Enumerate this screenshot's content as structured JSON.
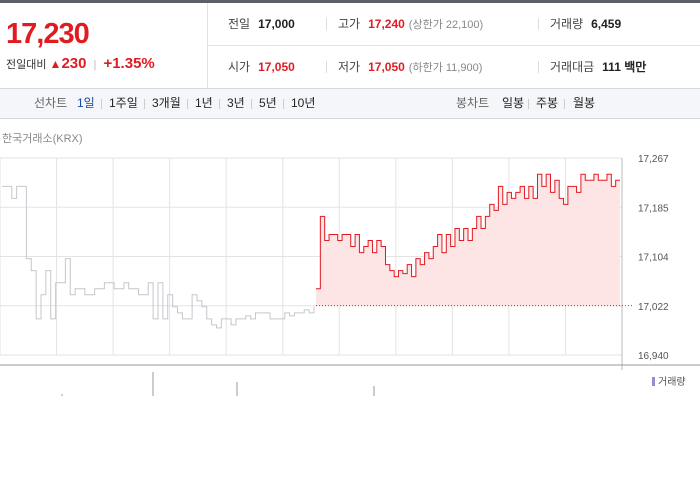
{
  "quote": {
    "price": "17,230",
    "change_label": "전일대비",
    "change_value": "230",
    "change_pct": "+1.35%"
  },
  "info": {
    "prev_close": {
      "label": "전일",
      "value": "17,000"
    },
    "high": {
      "label": "고가",
      "value": "17,240",
      "sub": "(상한가 22,100)"
    },
    "volume": {
      "label": "거래량",
      "value": "6,459"
    },
    "open": {
      "label": "시가",
      "value": "17,050"
    },
    "low": {
      "label": "저가",
      "value": "17,050",
      "sub": "(하한가 11,900)"
    },
    "turnover": {
      "label": "거래대금",
      "value": "111 백만"
    }
  },
  "line_tabs": {
    "label": "선차트",
    "items": [
      "1일",
      "1주일",
      "3개월",
      "1년",
      "3년",
      "5년",
      "10년"
    ],
    "active": "1일"
  },
  "candle_tabs": {
    "label": "봉차트",
    "items": [
      "일봉",
      "주봉",
      "월봉"
    ]
  },
  "exchange": "한국거래소(KRX)",
  "volume_legend": "거래량",
  "colors": {
    "up": "#e01b22",
    "fill": "#fde4e5",
    "grid": "#e3e3e3",
    "prev": "#c4c7cc"
  },
  "chart_data": {
    "type": "line",
    "y_ticks": [
      "17,267",
      "17,185",
      "17,104",
      "17,022",
      "16,940"
    ],
    "ylim": [
      16940,
      17267
    ],
    "baseline": 17022,
    "previous_day": [
      17220,
      17220,
      17200,
      17220,
      17220,
      17100,
      17080,
      17000,
      17040,
      17080,
      17000,
      17060,
      17060,
      17100,
      17040,
      17050,
      17050,
      17040,
      17040,
      17050,
      17050,
      17060,
      17060,
      17050,
      17050,
      17060,
      17050,
      17050,
      17040,
      17040,
      17060,
      17000,
      17060,
      17000,
      17040,
      17020,
      17010,
      17000,
      17000,
      17040,
      17030,
      17020,
      17000,
      16990,
      16985,
      17000,
      17000,
      16990,
      17000,
      17000,
      17005,
      17000,
      17010,
      17010,
      17010,
      17000,
      17000,
      17000,
      17010,
      17005,
      17010,
      17010,
      17015,
      17010,
      17020
    ],
    "today": [
      17050,
      17170,
      17130,
      17140,
      17140,
      17130,
      17140,
      17140,
      17120,
      17140,
      17110,
      17120,
      17130,
      17110,
      17130,
      17120,
      17090,
      17080,
      17070,
      17080,
      17075,
      17090,
      17070,
      17100,
      17090,
      17110,
      17100,
      17120,
      17140,
      17110,
      17140,
      17120,
      17150,
      17130,
      17150,
      17130,
      17150,
      17170,
      17150,
      17170,
      17190,
      17180,
      17220,
      17190,
      17210,
      17200,
      17210,
      17220,
      17200,
      17220,
      17200,
      17240,
      17220,
      17240,
      17210,
      17230,
      17200,
      17190,
      17220,
      17220,
      17210,
      17240,
      17230,
      17230,
      17240,
      17230,
      17230,
      17240,
      17220,
      17230,
      17230
    ]
  }
}
